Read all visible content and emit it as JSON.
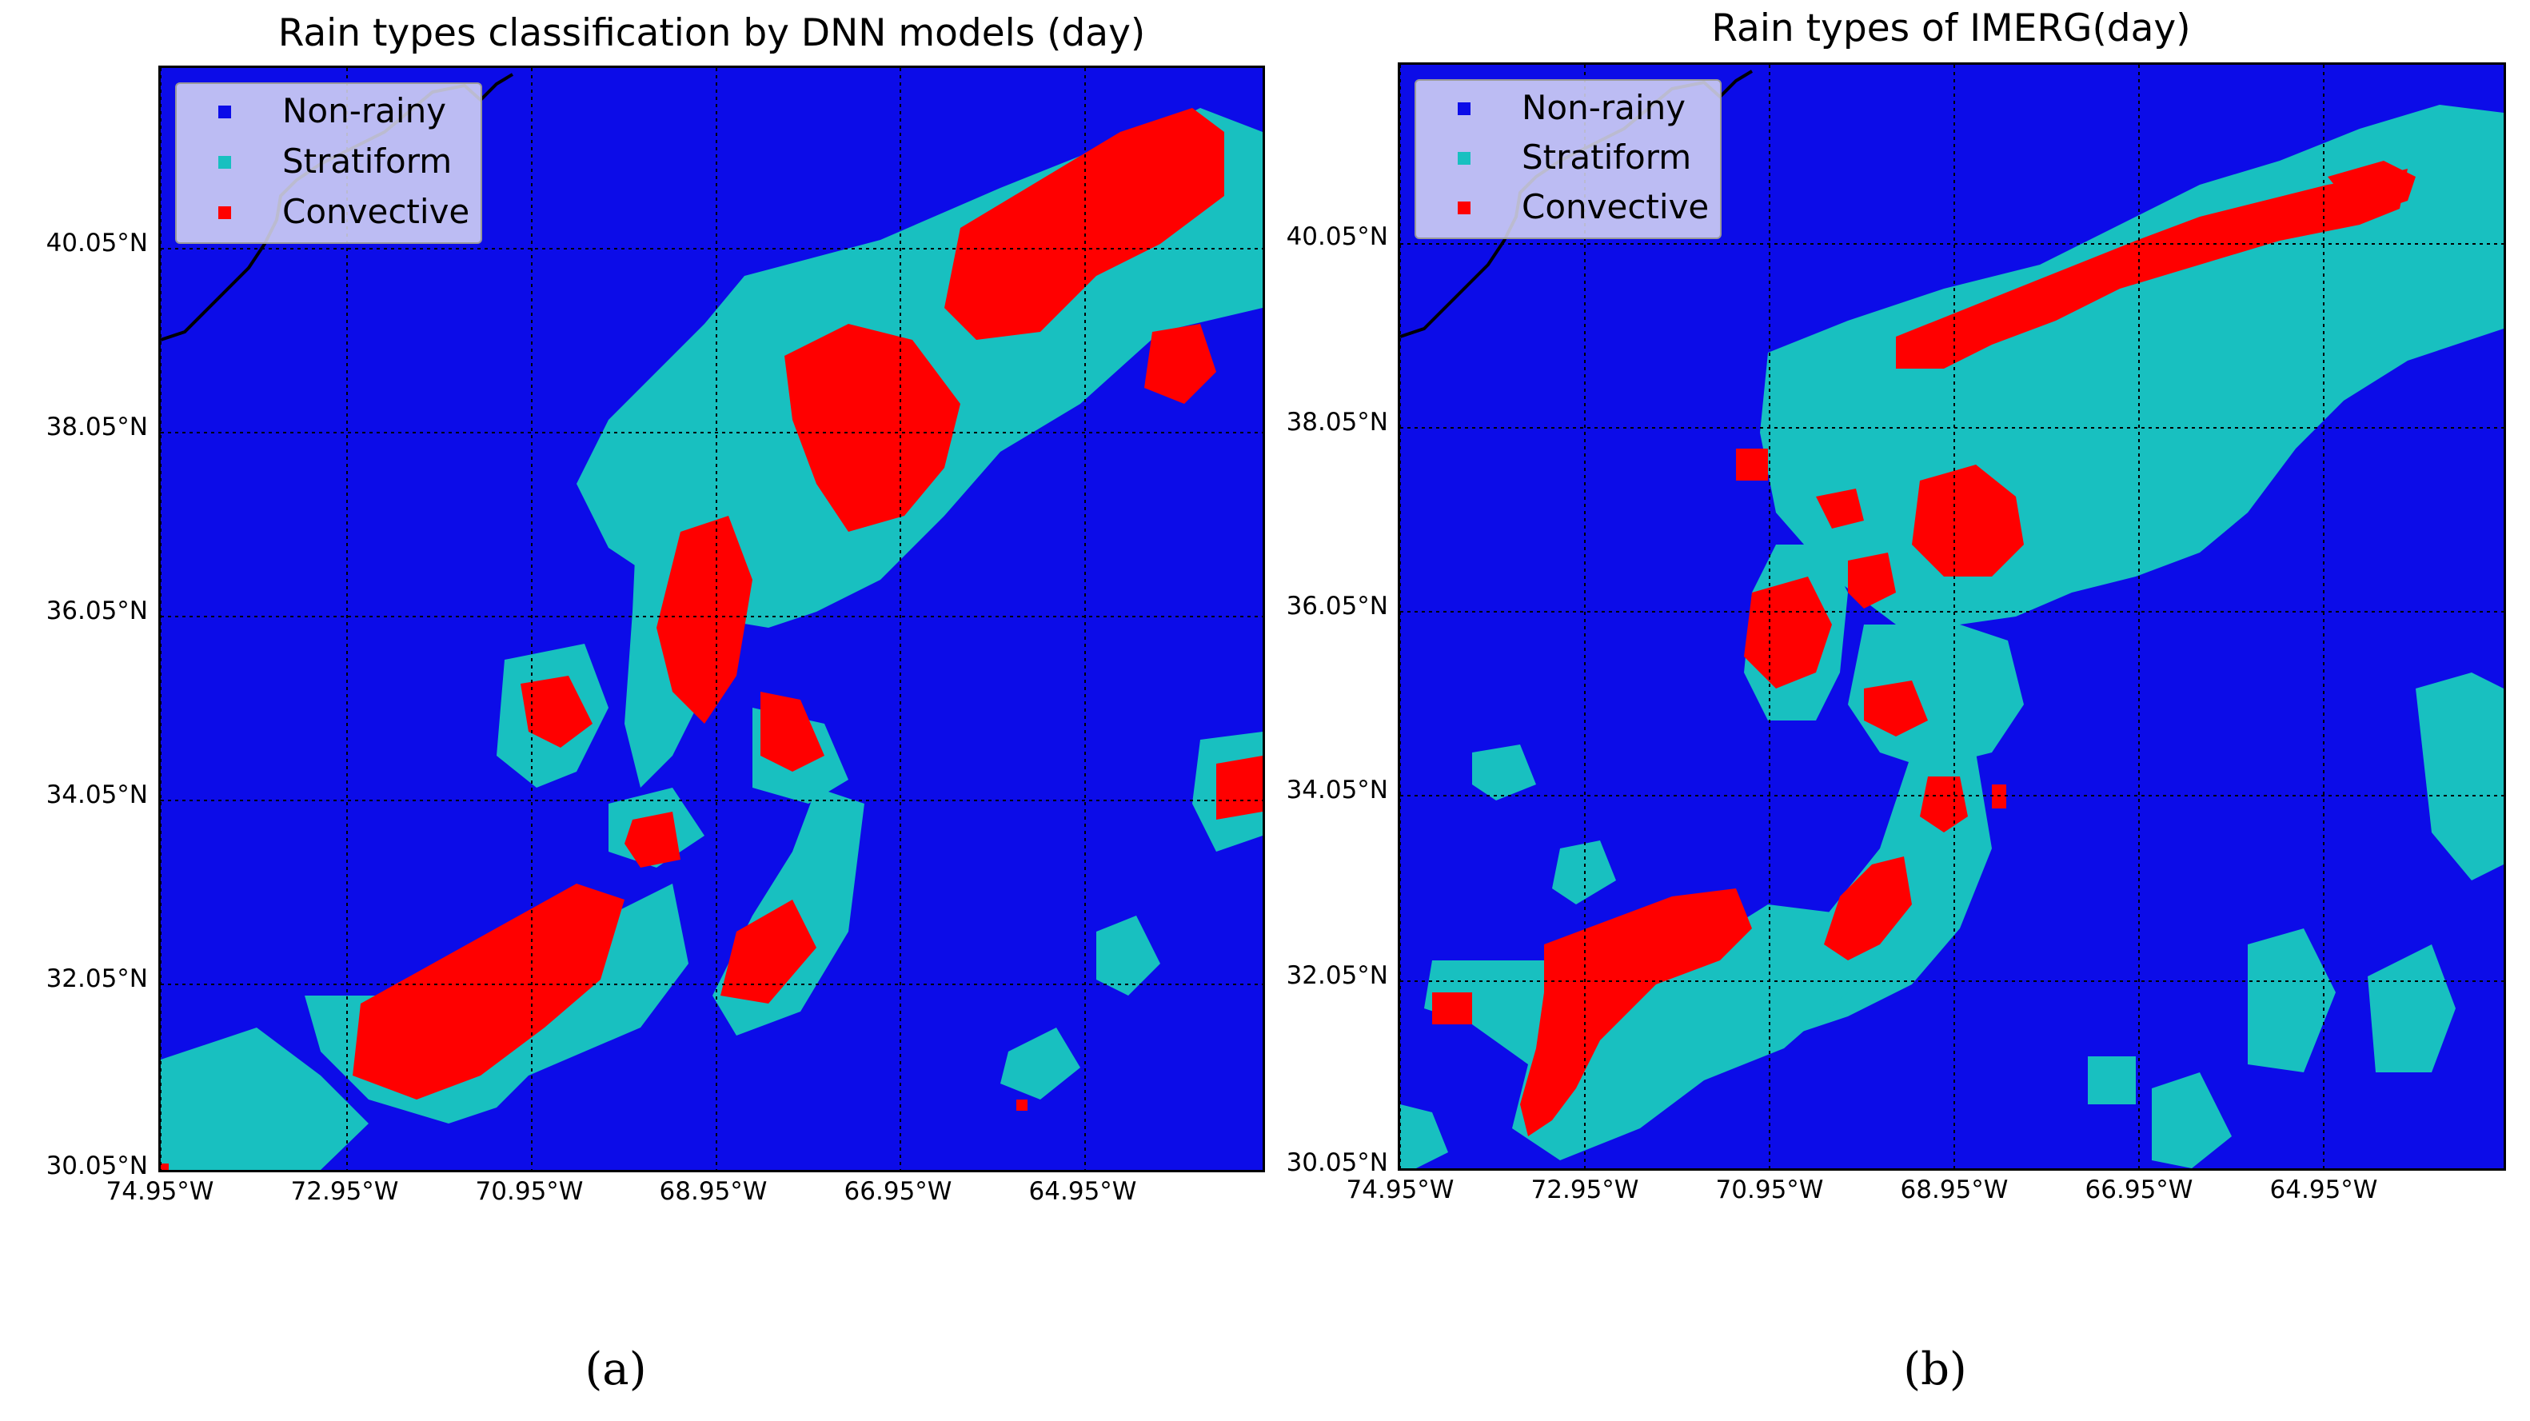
{
  "colors": {
    "non_rainy": "#0c0ce8",
    "stratiform": "#18c0c0",
    "convective": "#ff0000",
    "coastline": "#000000"
  },
  "panels": [
    {
      "id": "a",
      "title": "Rain types classification by DNN models (day)",
      "caption": "(a)",
      "legend": [
        "Non-rainy",
        "Stratiform",
        "Convective"
      ]
    },
    {
      "id": "b",
      "title": "Rain types of IMERG(day)",
      "caption": "(b)",
      "legend": [
        "Non-rainy",
        "Stratiform",
        "Convective"
      ]
    }
  ],
  "lat_labels": [
    "40.05°N",
    "38.05°N",
    "36.05°N",
    "34.05°N",
    "32.05°N",
    "30.05°N"
  ],
  "lon_labels": [
    "74.95°W",
    "72.95°W",
    "70.95°W",
    "68.95°W",
    "66.95°W",
    "64.95°W"
  ],
  "chart_data": [
    {
      "type": "heatmap",
      "title": "Rain types classification by DNN models (day)",
      "categories": [
        "Non-rainy",
        "Stratiform",
        "Convective"
      ],
      "lon_range": [
        -74.95,
        -62.95
      ],
      "lat_range": [
        30.05,
        41.95
      ],
      "lat_ticks": [
        "40.05°N",
        "38.05°N",
        "36.05°N",
        "34.05°N",
        "32.05°N",
        "30.05°N"
      ],
      "lon_ticks": [
        "74.95°W",
        "72.95°W",
        "70.95°W",
        "68.95°W",
        "66.95°W",
        "64.95°W"
      ],
      "legend_position": "top-left",
      "grid": true
    },
    {
      "type": "heatmap",
      "title": "Rain types of IMERG(day)",
      "categories": [
        "Non-rainy",
        "Stratiform",
        "Convective"
      ],
      "lon_range": [
        -74.95,
        -62.95
      ],
      "lat_range": [
        30.05,
        41.95
      ],
      "lat_ticks": [
        "40.05°N",
        "38.05°N",
        "36.05°N",
        "34.05°N",
        "32.05°N",
        "30.05°N"
      ],
      "lon_ticks": [
        "74.95°W",
        "72.95°W",
        "70.95°W",
        "68.95°W",
        "66.95°W",
        "64.95°W"
      ],
      "legend_position": "top-left",
      "grid": true
    }
  ]
}
